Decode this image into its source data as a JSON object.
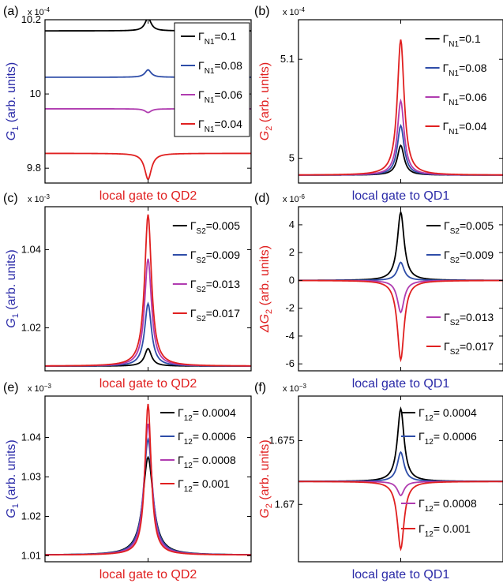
{
  "chart_data": [
    {
      "id": "a",
      "panel_label": "(a)",
      "type": "line",
      "exponent_label": "x 10",
      "exponent_power": "-4",
      "xlabel": "local gate to QD2",
      "xlabel_color": "#e02020",
      "ylabel_main": "G",
      "ylabel_sub": "1",
      "ylabel_rest": " (arb. units)",
      "ylabel_color": "#2b2ba8",
      "ylim": [
        9.76,
        10.2
      ],
      "yticks": [
        {
          "v": 9.8,
          "label": "9.8"
        },
        {
          "v": 10.0,
          "label": "10"
        },
        {
          "v": 10.2,
          "label": "10.2"
        }
      ],
      "legend_boxed": true,
      "legend_prefix": "Γ",
      "legend_sub": "N1",
      "series": [
        {
          "name": "=0.1",
          "color": "#000000",
          "base": 10.17,
          "peak": 0.035,
          "width": 0.018
        },
        {
          "name": "=0.08",
          "color": "#2e4da8",
          "base": 10.045,
          "peak": 0.02,
          "width": 0.018
        },
        {
          "name": "=0.06",
          "color": "#b03cb0",
          "base": 9.96,
          "peak": -0.01,
          "width": 0.018
        },
        {
          "name": "=0.04",
          "color": "#e02020",
          "base": 9.84,
          "peak": -0.07,
          "width": 0.02
        }
      ]
    },
    {
      "id": "b",
      "panel_label": "(b)",
      "type": "line",
      "exponent_label": "x 10",
      "exponent_power": "-4",
      "xlabel": "local gate to QD1",
      "xlabel_color": "#2b2ba8",
      "ylabel_main": "G",
      "ylabel_sub": "2",
      "ylabel_rest": " (arb. units)",
      "ylabel_color": "#e02020",
      "ylim": [
        4.975,
        5.14
      ],
      "yticks": [
        {
          "v": 5.0,
          "label": "5"
        },
        {
          "v": 5.1,
          "label": "5.1"
        }
      ],
      "legend_boxed": false,
      "legend_prefix": "Γ",
      "legend_sub": "N1",
      "series": [
        {
          "name": "=0.1",
          "color": "#000000",
          "base": 4.983,
          "peak": 0.03,
          "width": 0.02
        },
        {
          "name": "=0.08",
          "color": "#2e4da8",
          "base": 4.983,
          "peak": 0.05,
          "width": 0.02
        },
        {
          "name": "=0.06",
          "color": "#b03cb0",
          "base": 4.983,
          "peak": 0.075,
          "width": 0.02
        },
        {
          "name": "=0.04",
          "color": "#e02020",
          "base": 4.983,
          "peak": 0.137,
          "width": 0.02
        }
      ]
    },
    {
      "id": "c",
      "panel_label": "(c)",
      "type": "line",
      "exponent_label": "x 10",
      "exponent_power": "-3",
      "xlabel": "local gate to QD2",
      "xlabel_color": "#e02020",
      "ylabel_main": "G",
      "ylabel_sub": "1",
      "ylabel_rest": " (arb. units)",
      "ylabel_color": "#2b2ba8",
      "ylim": [
        1.009,
        1.051
      ],
      "yticks": [
        {
          "v": 1.02,
          "label": "1.02"
        },
        {
          "v": 1.04,
          "label": "1.04"
        }
      ],
      "legend_boxed": false,
      "legend_prefix": "Γ",
      "legend_sub": "S2",
      "series": [
        {
          "name": "=0.005",
          "color": "#000000",
          "base": 1.0102,
          "peak": 0.0045,
          "width": 0.02
        },
        {
          "name": "=0.009",
          "color": "#2e4da8",
          "base": 1.0102,
          "peak": 0.016,
          "width": 0.02
        },
        {
          "name": "=0.013",
          "color": "#b03cb0",
          "base": 1.0102,
          "peak": 0.0275,
          "width": 0.02
        },
        {
          "name": "=0.017",
          "color": "#e02020",
          "base": 1.0102,
          "peak": 0.0388,
          "width": 0.02
        }
      ]
    },
    {
      "id": "d",
      "panel_label": "(d)",
      "type": "line",
      "exponent_label": "x 10",
      "exponent_power": "-6",
      "xlabel": "local gate to QD1",
      "xlabel_color": "#2b2ba8",
      "ylabel_main": "ΔG",
      "ylabel_sub": "2",
      "ylabel_rest": " (arb. units)",
      "ylabel_color": "#e02020",
      "ylim": [
        -6.5,
        5.3
      ],
      "yticks": [
        {
          "v": -6,
          "label": "-6"
        },
        {
          "v": -4,
          "label": "-4"
        },
        {
          "v": -2,
          "label": "-2"
        },
        {
          "v": 0,
          "label": "0"
        },
        {
          "v": 2,
          "label": "2"
        },
        {
          "v": 4,
          "label": "4"
        }
      ],
      "legend_boxed": false,
      "legend_prefix": "Γ",
      "legend_sub": "S2",
      "legend_split": true,
      "series": [
        {
          "name": "=0.005",
          "color": "#000000",
          "base": 0,
          "peak": 4.9,
          "width": 0.02
        },
        {
          "name": "=0.009",
          "color": "#2e4da8",
          "base": 0,
          "peak": 1.3,
          "width": 0.02
        },
        {
          "name": "=0.013",
          "color": "#b03cb0",
          "base": 0,
          "peak": -2.3,
          "width": 0.02
        },
        {
          "name": "=0.017",
          "color": "#e02020",
          "base": 0,
          "peak": -5.7,
          "width": 0.02
        }
      ]
    },
    {
      "id": "e",
      "panel_label": "(e)",
      "type": "line",
      "exponent_label": "x 10",
      "exponent_power": "−3",
      "xlabel": "local gate to QD2",
      "xlabel_color": "#e02020",
      "ylabel_main": "G",
      "ylabel_sub": "1",
      "ylabel_rest": " (arb. units)",
      "ylabel_color": "#2b2ba8",
      "ylim": [
        1.0085,
        1.0505
      ],
      "yticks": [
        {
          "v": 1.01,
          "label": "1.01"
        },
        {
          "v": 1.02,
          "label": "1.02"
        },
        {
          "v": 1.03,
          "label": "1.03"
        },
        {
          "v": 1.04,
          "label": "1.04"
        }
      ],
      "legend_boxed": false,
      "legend_prefix": "Γ",
      "legend_sub": "12",
      "series": [
        {
          "name": "= 0.0004",
          "color": "#000000",
          "base": 1.0102,
          "peak": 0.0248,
          "width": 0.03
        },
        {
          "name": "= 0.0006",
          "color": "#2e4da8",
          "base": 1.0102,
          "peak": 0.0293,
          "width": 0.026
        },
        {
          "name": "= 0.0008",
          "color": "#b03cb0",
          "base": 1.0102,
          "peak": 0.0333,
          "width": 0.022
        },
        {
          "name": "= 0.001",
          "color": "#e02020",
          "base": 1.0102,
          "peak": 0.0383,
          "width": 0.018
        }
      ]
    },
    {
      "id": "f",
      "panel_label": "(f)",
      "type": "line",
      "exponent_label": "x 10",
      "exponent_power": "−3",
      "xlabel": "local gate to QD1",
      "xlabel_color": "#2b2ba8",
      "ylabel_main": "G",
      "ylabel_sub": "2",
      "ylabel_rest": " (arb. units)",
      "ylabel_color": "#e02020",
      "ylim": [
        1.6655,
        1.6785
      ],
      "yticks": [
        {
          "v": 1.67,
          "label": "1.67"
        },
        {
          "v": 1.675,
          "label": "1.675"
        }
      ],
      "legend_boxed": false,
      "legend_prefix": "Γ",
      "legend_sub": "12",
      "legend_split": true,
      "series": [
        {
          "name": "= 0.0004",
          "color": "#000000",
          "base": 1.6718,
          "peak": 0.0057,
          "width": 0.02
        },
        {
          "name": "= 0.0006",
          "color": "#2e4da8",
          "base": 1.6718,
          "peak": 0.0023,
          "width": 0.02
        },
        {
          "name": "= 0.0008",
          "color": "#b03cb0",
          "base": 1.6718,
          "peak": -0.0011,
          "width": 0.02
        },
        {
          "name": "= 0.001",
          "color": "#e02020",
          "base": 1.6718,
          "peak": -0.0053,
          "width": 0.02
        }
      ]
    }
  ]
}
